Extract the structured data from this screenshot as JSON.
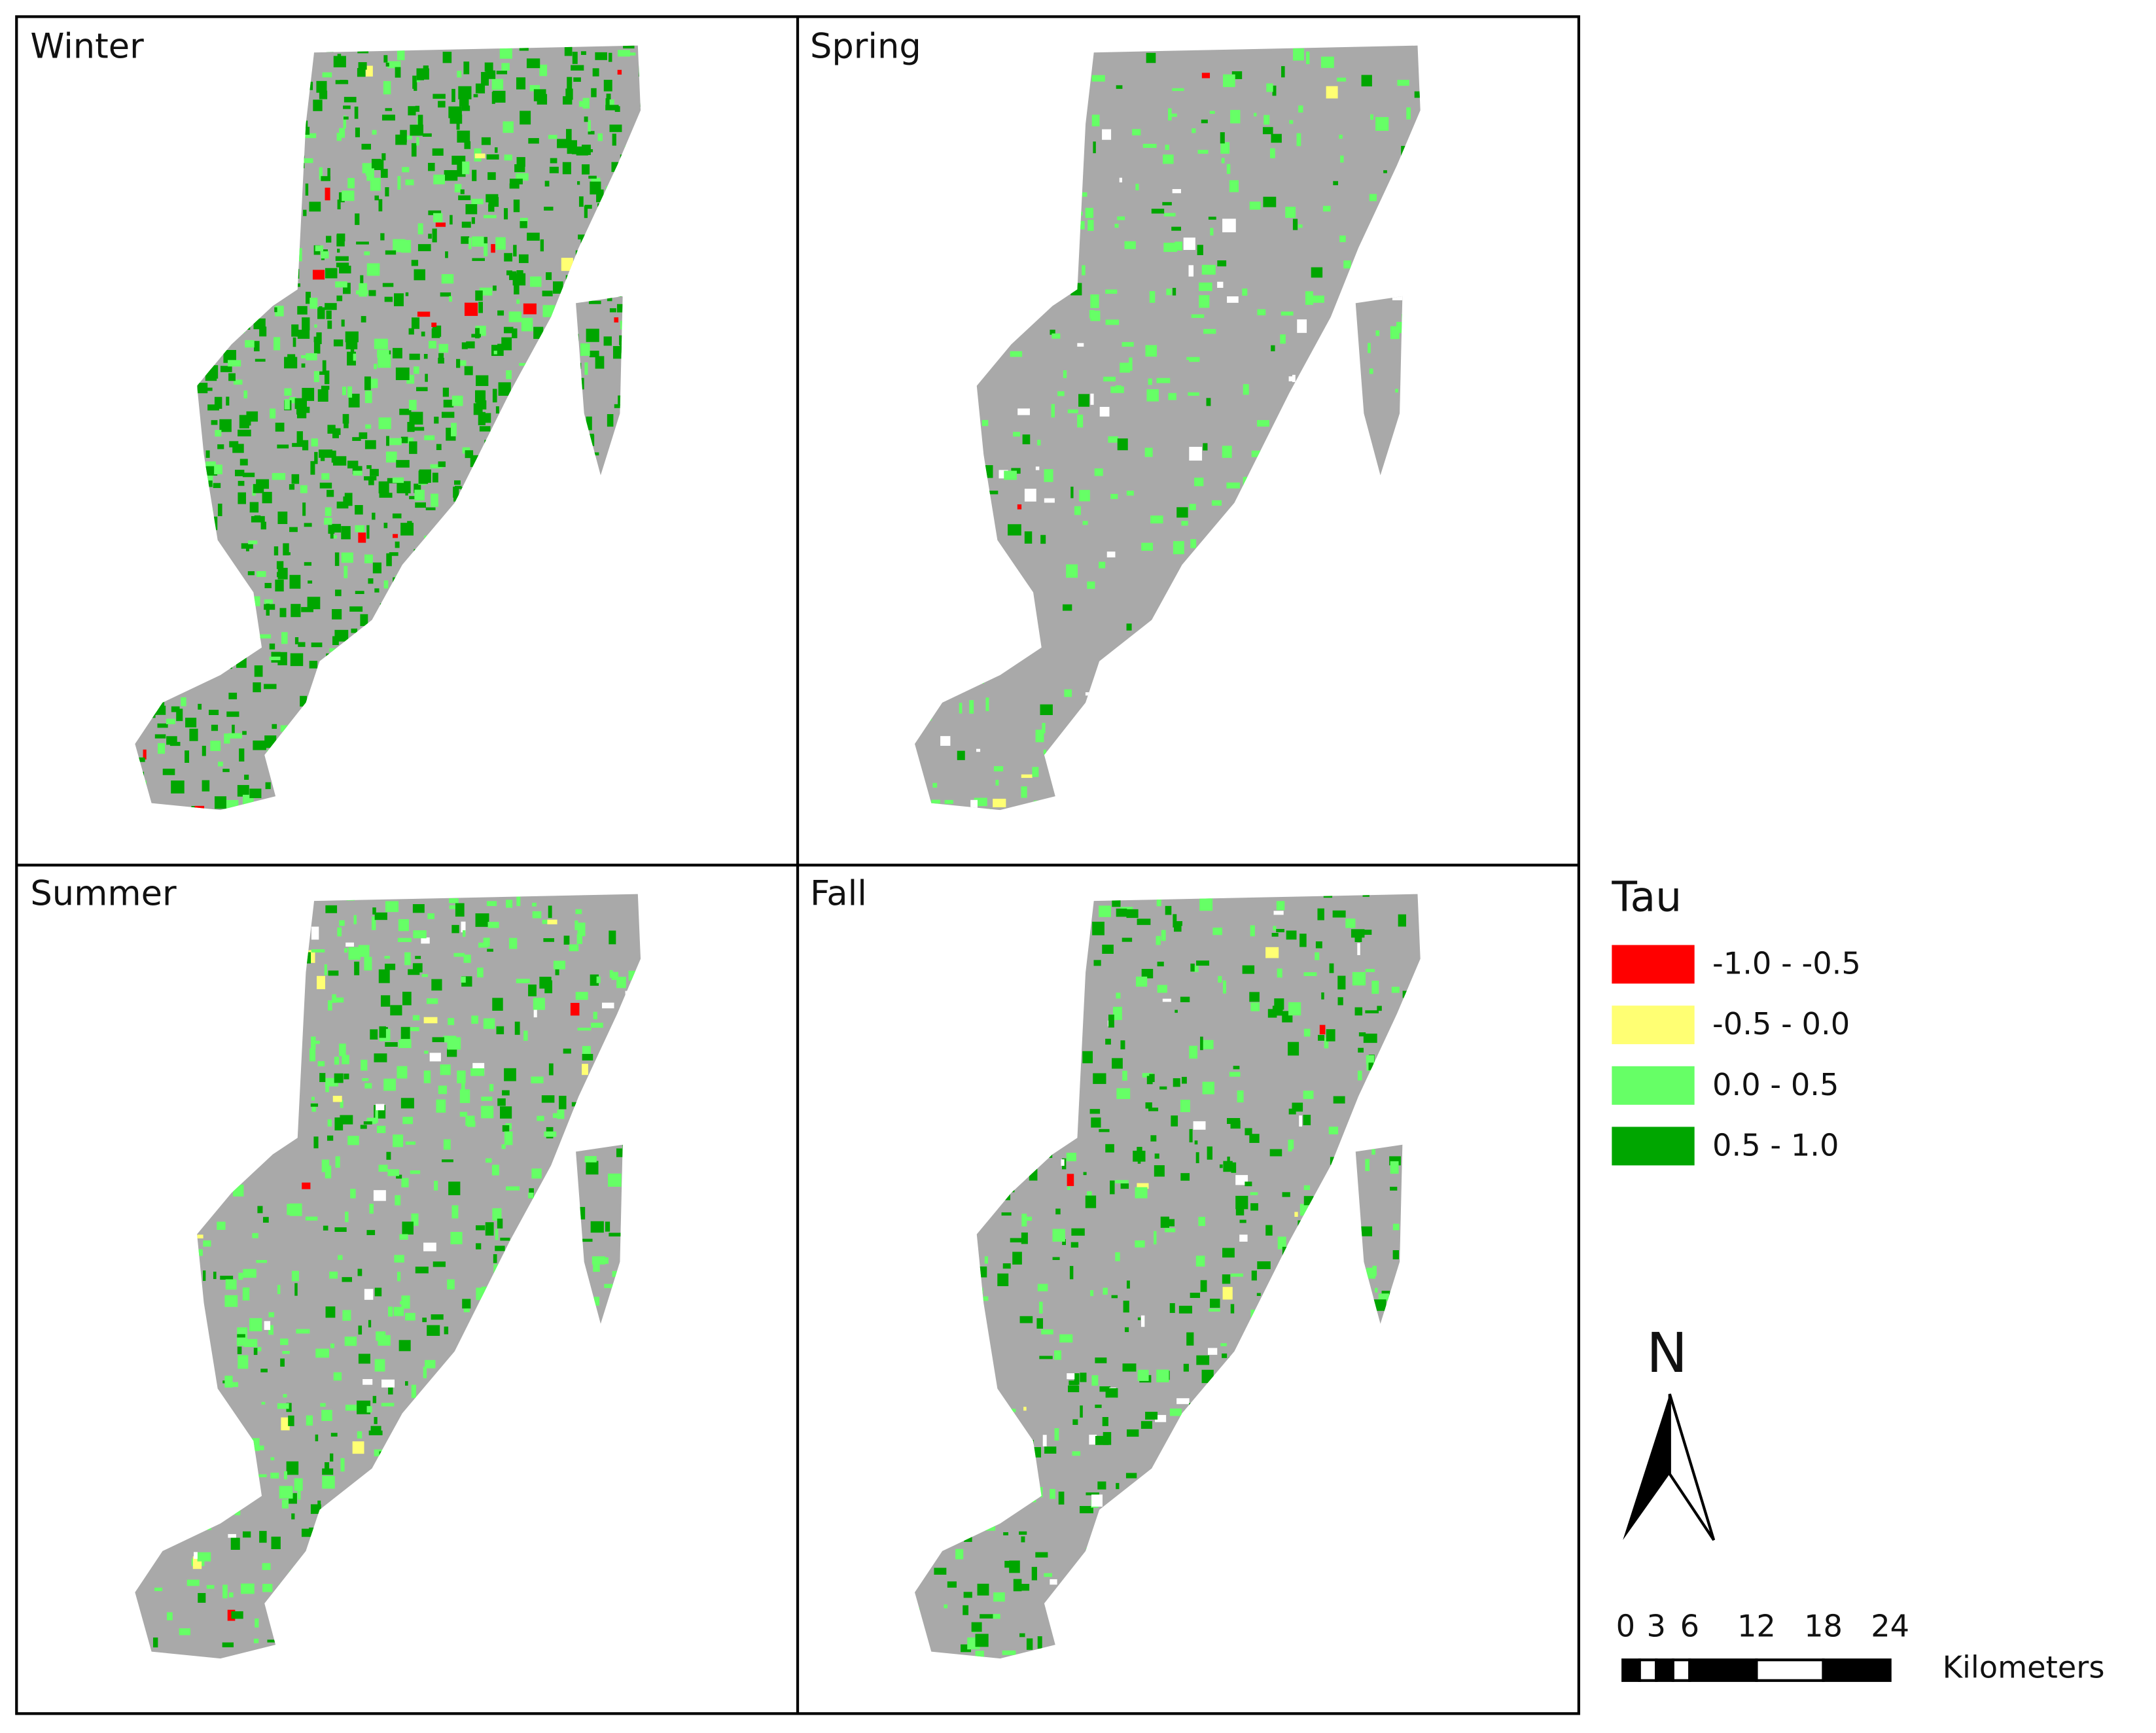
{
  "panels": [
    {
      "title": "Winter"
    },
    {
      "title": "Spring"
    },
    {
      "title": "Summer"
    },
    {
      "title": "Fall"
    }
  ],
  "legend": {
    "title": "Tau",
    "items": [
      {
        "label": "-1.0 - -0.5",
        "color": "#ff0000"
      },
      {
        "label": "-0.5 - 0.0",
        "color": "#ffff73"
      },
      {
        "label": "0.0 - 0.5",
        "color": "#66ff66"
      },
      {
        "label": "0.5 - 1.0",
        "color": "#00a600"
      }
    ]
  },
  "north_arrow": {
    "label": "N"
  },
  "scale_bar": {
    "ticks": [
      0,
      3,
      6,
      12,
      18,
      24
    ],
    "unit": "Kilometers"
  }
}
